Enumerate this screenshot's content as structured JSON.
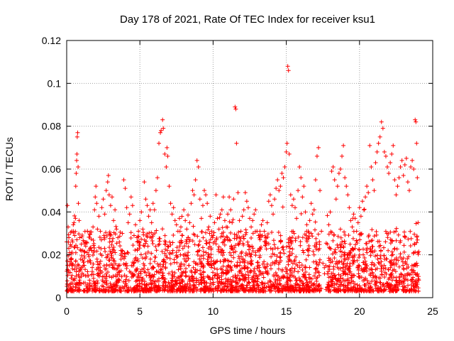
{
  "chart_data": {
    "type": "scatter",
    "title": "Day 178 of 2021, Rate Of TEC Index for receiver ksu1",
    "xlabel": "GPS time / hours",
    "ylabel": "ROTI / TECUs",
    "xlim": [
      0,
      25
    ],
    "ylim": [
      0,
      0.12
    ],
    "xticks": [
      0,
      5,
      10,
      15,
      20,
      25
    ],
    "yticks": [
      0,
      0.02,
      0.04,
      0.06,
      0.08,
      0.1,
      0.12
    ],
    "xtick_labels": [
      "0",
      "5",
      "10",
      "15",
      "20",
      "25"
    ],
    "ytick_labels": [
      "0",
      "0.02",
      "0.04",
      "0.06",
      "0.08",
      "0.1",
      "0.12"
    ],
    "grid": true,
    "marker": "+",
    "color": "#ff0000",
    "series": [
      {
        "points": [
          [
            0.05,
            0.043
          ],
          [
            0.1,
            0.033
          ],
          [
            0.15,
            0.028
          ],
          [
            0.2,
            0.021
          ],
          [
            0.25,
            0.018
          ],
          [
            0.3,
            0.024
          ],
          [
            0.35,
            0.031
          ],
          [
            0.4,
            0.026
          ],
          [
            0.45,
            0.034
          ],
          [
            0.5,
            0.035
          ],
          [
            0.55,
            0.029
          ],
          [
            0.6,
            0.037
          ],
          [
            0.62,
            0.052
          ],
          [
            0.65,
            0.058
          ],
          [
            0.68,
            0.064
          ],
          [
            0.7,
            0.067
          ],
          [
            0.72,
            0.075
          ],
          [
            0.75,
            0.077
          ],
          [
            0.78,
            0.061
          ],
          [
            0.8,
            0.044
          ],
          [
            0.85,
            0.036
          ],
          [
            0.9,
            0.028
          ],
          [
            1.0,
            0.025
          ],
          [
            1.1,
            0.022
          ],
          [
            1.2,
            0.026
          ],
          [
            1.3,
            0.024
          ],
          [
            1.4,
            0.021
          ],
          [
            1.5,
            0.02
          ],
          [
            1.6,
            0.023
          ],
          [
            1.7,
            0.022
          ],
          [
            1.8,
            0.033
          ],
          [
            1.9,
            0.041
          ],
          [
            1.95,
            0.047
          ],
          [
            2.0,
            0.052
          ],
          [
            2.05,
            0.044
          ],
          [
            2.1,
            0.032
          ],
          [
            2.2,
            0.038
          ],
          [
            2.3,
            0.031
          ],
          [
            2.4,
            0.042
          ],
          [
            2.5,
            0.046
          ],
          [
            2.6,
            0.039
          ],
          [
            2.7,
            0.05
          ],
          [
            2.8,
            0.054
          ],
          [
            2.85,
            0.057
          ],
          [
            2.9,
            0.048
          ],
          [
            3.0,
            0.043
          ],
          [
            3.1,
            0.047
          ],
          [
            3.2,
            0.036
          ],
          [
            3.3,
            0.041
          ],
          [
            3.4,
            0.032
          ],
          [
            3.5,
            0.028
          ],
          [
            3.6,
            0.026
          ],
          [
            3.7,
            0.022
          ],
          [
            3.8,
            0.03
          ],
          [
            3.9,
            0.055
          ],
          [
            4.0,
            0.051
          ],
          [
            4.1,
            0.042
          ],
          [
            4.2,
            0.035
          ],
          [
            4.3,
            0.039
          ],
          [
            4.4,
            0.047
          ],
          [
            4.5,
            0.043
          ],
          [
            4.6,
            0.029
          ],
          [
            4.7,
            0.034
          ],
          [
            4.8,
            0.028
          ],
          [
            4.9,
            0.031
          ],
          [
            5.0,
            0.036
          ],
          [
            5.1,
            0.04
          ],
          [
            5.2,
            0.032
          ],
          [
            5.3,
            0.054
          ],
          [
            5.4,
            0.046
          ],
          [
            5.5,
            0.043
          ],
          [
            5.6,
            0.038
          ],
          [
            5.7,
            0.041
          ],
          [
            5.8,
            0.035
          ],
          [
            5.9,
            0.044
          ],
          [
            6.0,
            0.041
          ],
          [
            6.1,
            0.05
          ],
          [
            6.2,
            0.056
          ],
          [
            6.3,
            0.072
          ],
          [
            6.4,
            0.077
          ],
          [
            6.45,
            0.078
          ],
          [
            6.55,
            0.083
          ],
          [
            6.6,
            0.079
          ],
          [
            6.7,
            0.067
          ],
          [
            6.8,
            0.061
          ],
          [
            6.85,
            0.07
          ],
          [
            6.9,
            0.066
          ],
          [
            7.0,
            0.052
          ],
          [
            7.1,
            0.044
          ],
          [
            7.2,
            0.039
          ],
          [
            7.3,
            0.042
          ],
          [
            7.4,
            0.036
          ],
          [
            7.5,
            0.034
          ],
          [
            7.6,
            0.031
          ],
          [
            7.7,
            0.037
          ],
          [
            7.8,
            0.033
          ],
          [
            7.9,
            0.029
          ],
          [
            8.0,
            0.041
          ],
          [
            8.1,
            0.036
          ],
          [
            8.2,
            0.032
          ],
          [
            8.3,
            0.028
          ],
          [
            8.4,
            0.035
          ],
          [
            8.5,
            0.044
          ],
          [
            8.6,
            0.05
          ],
          [
            8.7,
            0.048
          ],
          [
            8.8,
            0.055
          ],
          [
            8.9,
            0.064
          ],
          [
            9.0,
            0.061
          ],
          [
            9.1,
            0.046
          ],
          [
            9.2,
            0.037
          ],
          [
            9.3,
            0.043
          ],
          [
            9.4,
            0.05
          ],
          [
            9.5,
            0.048
          ],
          [
            9.6,
            0.044
          ],
          [
            9.7,
            0.033
          ],
          [
            9.8,
            0.038
          ],
          [
            9.9,
            0.031
          ],
          [
            10.0,
            0.029
          ],
          [
            10.1,
            0.035
          ],
          [
            10.2,
            0.048
          ],
          [
            10.3,
            0.037
          ],
          [
            10.4,
            0.032
          ],
          [
            10.5,
            0.039
          ],
          [
            10.6,
            0.041
          ],
          [
            10.7,
            0.047
          ],
          [
            10.8,
            0.036
          ],
          [
            10.9,
            0.033
          ],
          [
            11.0,
            0.039
          ],
          [
            11.1,
            0.047
          ],
          [
            11.2,
            0.041
          ],
          [
            11.3,
            0.035
          ],
          [
            11.4,
            0.046
          ],
          [
            11.5,
            0.089
          ],
          [
            11.55,
            0.088
          ],
          [
            11.6,
            0.072
          ],
          [
            11.7,
            0.049
          ],
          [
            11.8,
            0.036
          ],
          [
            11.9,
            0.031
          ],
          [
            12.0,
            0.038
          ],
          [
            12.1,
            0.041
          ],
          [
            12.2,
            0.049
          ],
          [
            12.3,
            0.045
          ],
          [
            12.4,
            0.042
          ],
          [
            12.5,
            0.037
          ],
          [
            12.6,
            0.033
          ],
          [
            12.7,
            0.036
          ],
          [
            12.8,
            0.039
          ],
          [
            12.9,
            0.041
          ],
          [
            13.0,
            0.031
          ],
          [
            13.1,
            0.029
          ],
          [
            13.2,
            0.027
          ],
          [
            13.3,
            0.034
          ],
          [
            13.4,
            0.036
          ],
          [
            13.5,
            0.031
          ],
          [
            13.6,
            0.028
          ],
          [
            13.7,
            0.035
          ],
          [
            13.8,
            0.045
          ],
          [
            13.9,
            0.048
          ],
          [
            14.0,
            0.043
          ],
          [
            14.1,
            0.039
          ],
          [
            14.2,
            0.046
          ],
          [
            14.3,
            0.051
          ],
          [
            14.4,
            0.055
          ],
          [
            14.5,
            0.05
          ],
          [
            14.6,
            0.052
          ],
          [
            14.7,
            0.058
          ],
          [
            14.8,
            0.056
          ],
          [
            14.9,
            0.061
          ],
          [
            15.0,
            0.068
          ],
          [
            15.05,
            0.072
          ],
          [
            15.1,
            0.108
          ],
          [
            15.15,
            0.106
          ],
          [
            15.2,
            0.067
          ],
          [
            15.3,
            0.048
          ],
          [
            15.4,
            0.043
          ],
          [
            15.5,
            0.046
          ],
          [
            15.6,
            0.042
          ],
          [
            15.7,
            0.037
          ],
          [
            15.8,
            0.05
          ],
          [
            15.9,
            0.061
          ],
          [
            16.0,
            0.056
          ],
          [
            16.1,
            0.047
          ],
          [
            16.2,
            0.052
          ],
          [
            16.3,
            0.04
          ],
          [
            16.4,
            0.034
          ],
          [
            16.5,
            0.031
          ],
          [
            16.6,
            0.036
          ],
          [
            16.7,
            0.044
          ],
          [
            16.8,
            0.039
          ],
          [
            16.9,
            0.041
          ],
          [
            17.0,
            0.055
          ],
          [
            17.1,
            0.066
          ],
          [
            17.2,
            0.07
          ],
          [
            17.3,
            0.05
          ],
          [
            17.4,
            0.031
          ],
          [
            17.5,
            0.016
          ],
          [
            17.6,
            0.014
          ],
          [
            17.7,
            0.015
          ],
          [
            17.8,
            0.025
          ],
          [
            17.9,
            0.034
          ],
          [
            18.0,
            0.04
          ],
          [
            18.1,
            0.059
          ],
          [
            18.2,
            0.061
          ],
          [
            18.3,
            0.055
          ],
          [
            18.4,
            0.046
          ],
          [
            18.5,
            0.052
          ],
          [
            18.6,
            0.058
          ],
          [
            18.7,
            0.06
          ],
          [
            18.8,
            0.066
          ],
          [
            18.9,
            0.071
          ],
          [
            19.0,
            0.056
          ],
          [
            19.1,
            0.052
          ],
          [
            19.2,
            0.048
          ],
          [
            19.3,
            0.042
          ],
          [
            19.4,
            0.036
          ],
          [
            19.5,
            0.033
          ],
          [
            19.6,
            0.039
          ],
          [
            19.7,
            0.037
          ],
          [
            19.8,
            0.031
          ],
          [
            19.9,
            0.035
          ],
          [
            20.0,
            0.042
          ],
          [
            20.1,
            0.038
          ],
          [
            20.2,
            0.045
          ],
          [
            20.3,
            0.041
          ],
          [
            20.4,
            0.047
          ],
          [
            20.5,
            0.052
          ],
          [
            20.6,
            0.049
          ],
          [
            20.7,
            0.071
          ],
          [
            20.8,
            0.061
          ],
          [
            20.9,
            0.055
          ],
          [
            21.0,
            0.05
          ],
          [
            21.1,
            0.063
          ],
          [
            21.2,
            0.068
          ],
          [
            21.3,
            0.072
          ],
          [
            21.4,
            0.075
          ],
          [
            21.5,
            0.082
          ],
          [
            21.6,
            0.079
          ],
          [
            21.7,
            0.068
          ],
          [
            21.8,
            0.066
          ],
          [
            21.9,
            0.061
          ],
          [
            22.0,
            0.058
          ],
          [
            22.1,
            0.063
          ],
          [
            22.2,
            0.067
          ],
          [
            22.3,
            0.071
          ],
          [
            22.4,
            0.055
          ],
          [
            22.5,
            0.048
          ],
          [
            22.6,
            0.052
          ],
          [
            22.7,
            0.056
          ],
          [
            22.8,
            0.061
          ],
          [
            22.9,
            0.064
          ],
          [
            23.0,
            0.057
          ],
          [
            23.1,
            0.062
          ],
          [
            23.2,
            0.065
          ],
          [
            23.3,
            0.054
          ],
          [
            23.4,
            0.05
          ],
          [
            23.5,
            0.061
          ],
          [
            23.6,
            0.064
          ],
          [
            23.7,
            0.06
          ],
          [
            23.8,
            0.083
          ],
          [
            23.85,
            0.082
          ],
          [
            23.9,
            0.072
          ],
          [
            23.95,
            0.056
          ],
          [
            24.0,
            0.035
          ]
        ]
      }
    ]
  }
}
